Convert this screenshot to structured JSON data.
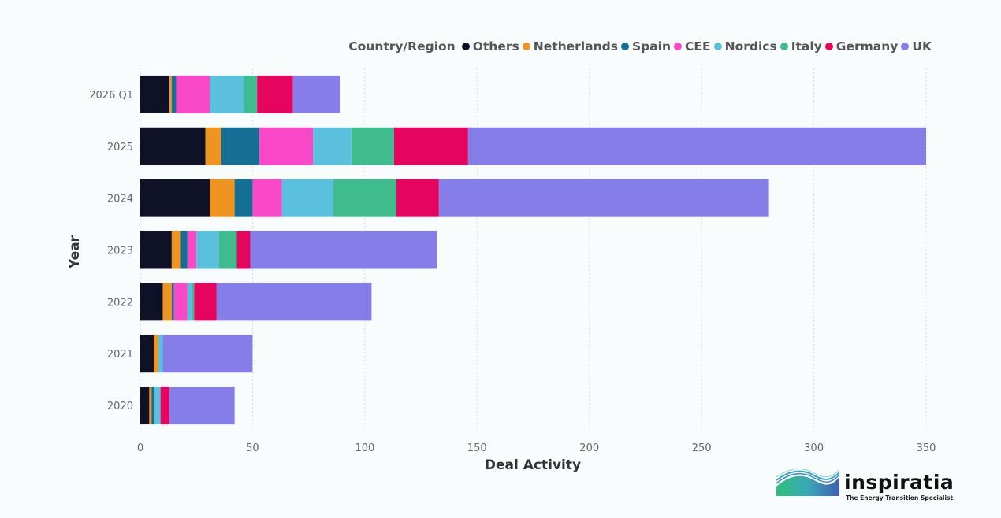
{
  "chart_data": {
    "type": "bar",
    "orientation": "horizontal",
    "stacked": true,
    "xlabel": "Deal Activity",
    "ylabel": "Year",
    "xlim": [
      0,
      350
    ],
    "xticks": [
      0,
      50,
      100,
      150,
      200,
      250,
      300,
      350
    ],
    "grid": "vertical-dotted",
    "legend_title": "Country/Region",
    "legend_position": "top-right",
    "categories": [
      "2026 Q1",
      "2025",
      "2024",
      "2023",
      "2022",
      "2021",
      "2020"
    ],
    "series": [
      {
        "name": "Others",
        "color": "#0f1226",
        "values": [
          13,
          29,
          31,
          14,
          10,
          6,
          4
        ]
      },
      {
        "name": "Netherlands",
        "color": "#ef9321",
        "values": [
          1,
          7,
          11,
          4,
          4,
          2,
          1
        ]
      },
      {
        "name": "Spain",
        "color": "#156e94",
        "values": [
          2,
          17,
          8,
          3,
          1,
          0,
          1
        ]
      },
      {
        "name": "CEE",
        "color": "#fa49c8",
        "values": [
          15,
          24,
          13,
          4,
          6,
          0,
          0
        ]
      },
      {
        "name": "Nordics",
        "color": "#5bc0de",
        "values": [
          15,
          17,
          23,
          10,
          2,
          2,
          3
        ]
      },
      {
        "name": "Italy",
        "color": "#3fbc8d",
        "values": [
          6,
          19,
          28,
          8,
          1,
          0,
          0
        ]
      },
      {
        "name": "Germany",
        "color": "#e5055f",
        "values": [
          16,
          33,
          19,
          6,
          10,
          0,
          4
        ]
      },
      {
        "name": "UK",
        "color": "#867ee8",
        "values": [
          21,
          204,
          147,
          83,
          69,
          40,
          29
        ]
      }
    ]
  },
  "branding": {
    "logo_text": "inspiratia",
    "tagline": "The Energy Transition Specialist"
  }
}
